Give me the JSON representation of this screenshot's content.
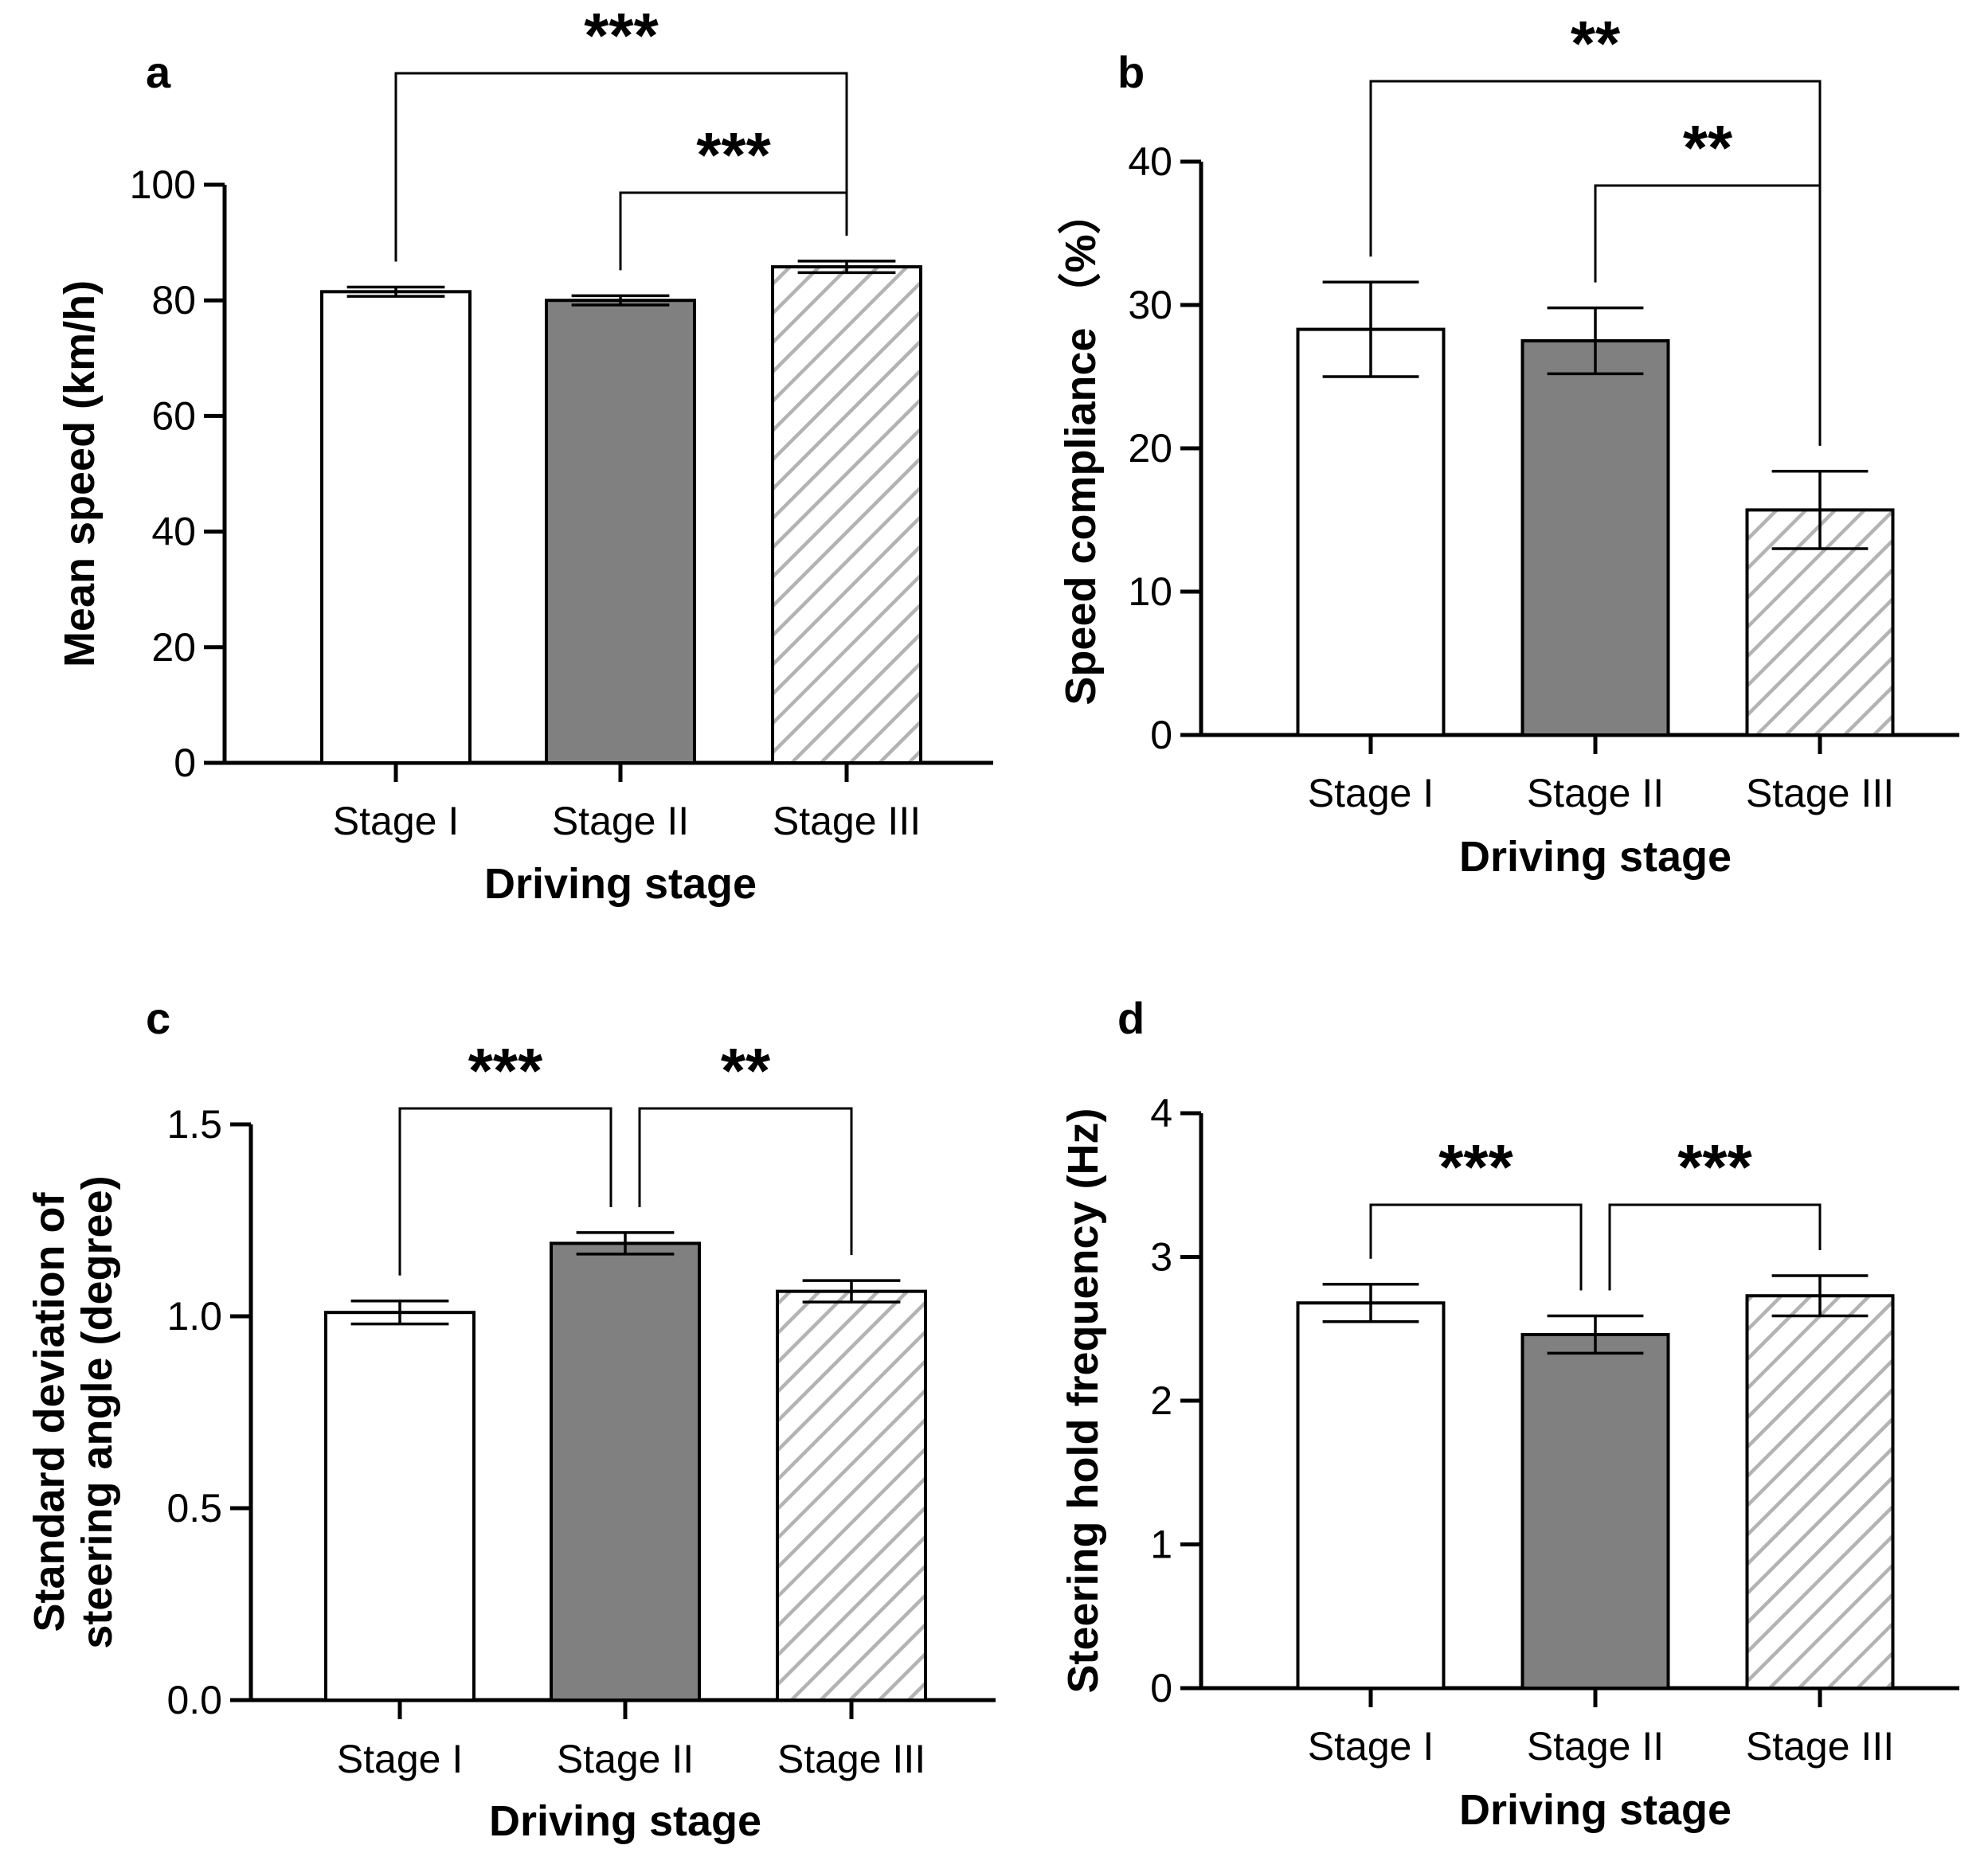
{
  "colors": {
    "stage1": "#ffffff",
    "stage2": "#808080",
    "stage3_hatch": "#b3b3b3",
    "stroke": "#000000"
  },
  "chart_data": [
    {
      "type": "bar",
      "panel": "a",
      "categories": [
        "Stage I",
        "Stage II",
        "Stage III"
      ],
      "values": [
        81.5,
        80.0,
        85.8
      ],
      "errors": [
        0.8,
        0.8,
        1.0
      ],
      "fills": [
        "white",
        "gray",
        "hatch"
      ],
      "xlabel": "Driving stage",
      "ylabel": "Mean speed (km/h)",
      "ylim": [
        0,
        100
      ],
      "yticks": [
        "0",
        "20",
        "40",
        "60",
        "80",
        "100"
      ],
      "significance": [
        {
          "from": 0,
          "to": 2,
          "label": "***"
        },
        {
          "from": 1,
          "to": 2,
          "label": "***"
        }
      ]
    },
    {
      "type": "bar",
      "panel": "b",
      "categories": [
        "Stage I",
        "Stage II",
        "Stage III"
      ],
      "values": [
        28.3,
        27.5,
        15.7
      ],
      "errors": [
        3.3,
        2.3,
        2.7
      ],
      "fills": [
        "white",
        "gray",
        "hatch"
      ],
      "xlabel": "Driving stage",
      "ylabel": "Speed compliance （%）",
      "ylim": [
        0,
        40
      ],
      "yticks": [
        "0",
        "10",
        "20",
        "30",
        "40"
      ],
      "significance": [
        {
          "from": 0,
          "to": 2,
          "label": "**"
        },
        {
          "from": 1,
          "to": 2,
          "label": "**"
        }
      ]
    },
    {
      "type": "bar",
      "panel": "c",
      "categories": [
        "Stage I",
        "Stage II",
        "Stage III"
      ],
      "values": [
        1.01,
        1.19,
        1.065
      ],
      "errors": [
        0.03,
        0.028,
        0.028
      ],
      "fills": [
        "white",
        "gray",
        "hatch"
      ],
      "xlabel": "Driving stage",
      "ylabel": [
        "Standard deviation of",
        "steering angle (degree)"
      ],
      "ylim": [
        0,
        1.5
      ],
      "yticks": [
        "0.0",
        "0.5",
        "1.0",
        "1.5"
      ],
      "significance": [
        {
          "from": 0,
          "to": 1,
          "label": "***"
        },
        {
          "from": 1,
          "to": 2,
          "label": "**"
        }
      ]
    },
    {
      "type": "bar",
      "panel": "d",
      "categories": [
        "Stage I",
        "Stage II",
        "Stage III"
      ],
      "values": [
        2.68,
        2.46,
        2.73
      ],
      "errors": [
        0.13,
        0.13,
        0.14
      ],
      "fills": [
        "white",
        "gray",
        "hatch"
      ],
      "xlabel": "Driving stage",
      "ylabel": "Steering hold frequency (Hz)",
      "ylim": [
        0,
        4
      ],
      "yticks": [
        "0",
        "1",
        "2",
        "3",
        "4"
      ],
      "significance": [
        {
          "from": 0,
          "to": 1,
          "label": "***"
        },
        {
          "from": 1,
          "to": 2,
          "label": "***"
        }
      ]
    }
  ]
}
